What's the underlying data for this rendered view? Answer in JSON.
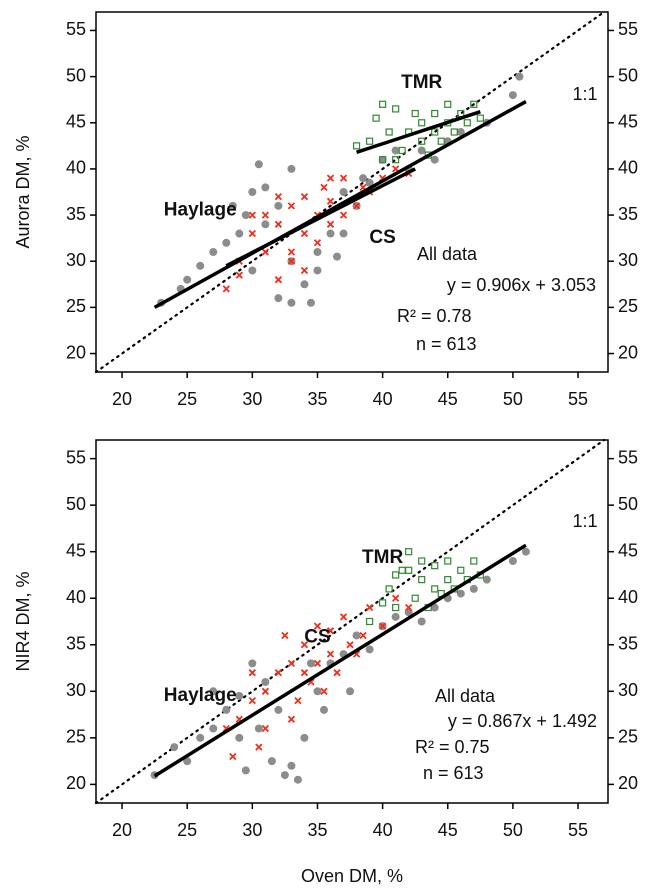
{
  "chart_data": [
    {
      "type": "scatter",
      "ylabel": "Aurora DM, %",
      "xlim": [
        18,
        57.3
      ],
      "ylim": [
        18,
        57
      ],
      "xticks": [
        20,
        25,
        30,
        35,
        40,
        45,
        50,
        55
      ],
      "yticks": [
        20,
        25,
        30,
        35,
        40,
        45,
        50,
        55
      ],
      "identity_label": "1:1",
      "annotations": [
        "All data",
        "y = 0.906x + 3.053",
        "R² = 0.78",
        "n = 613"
      ],
      "series": [
        {
          "name": "Haylage",
          "color": "#8c8c8c",
          "marker": "circle",
          "x": [
            23,
            24.5,
            25,
            26,
            27,
            28,
            28.5,
            29,
            29.5,
            30,
            30.5,
            31,
            31,
            32,
            32,
            33,
            33,
            34,
            34.5,
            35,
            35,
            36,
            36.5,
            37,
            38,
            38.5,
            39,
            40,
            41,
            42,
            43,
            44,
            45,
            46,
            48,
            50,
            50.5,
            37,
            33,
            30
          ],
          "values": [
            25.5,
            27,
            28,
            29.5,
            31,
            32,
            36,
            33,
            35,
            37.5,
            40.5,
            38,
            34,
            26,
            36,
            25.5,
            30,
            27.5,
            25.5,
            31,
            29,
            33,
            30.5,
            37.5,
            36,
            39,
            38.5,
            41,
            42,
            40,
            42,
            41,
            43,
            44,
            45,
            48,
            50,
            33,
            40,
            29
          ]
        },
        {
          "name": "CS",
          "color": "#f22d1c",
          "marker": "x",
          "x": [
            28,
            29,
            30,
            31,
            32,
            32,
            33,
            33,
            34,
            34,
            35,
            35,
            35.5,
            36,
            36,
            37,
            37,
            38,
            38.5,
            39,
            40,
            41,
            42,
            31,
            33,
            34,
            29,
            36,
            30,
            32
          ],
          "values": [
            27,
            30,
            33,
            35,
            34,
            28,
            36,
            31,
            33,
            37,
            35,
            32,
            38,
            34,
            36.5,
            35,
            39,
            36,
            38,
            37.5,
            39,
            40,
            39.5,
            31,
            30,
            29,
            28.5,
            39,
            35,
            37
          ]
        },
        {
          "name": "TMR",
          "color": "#2f8a2f",
          "marker": "square",
          "x": [
            38,
            39,
            39.5,
            40,
            40.5,
            41,
            41,
            41.5,
            42,
            42.5,
            43,
            43,
            43.5,
            44,
            44,
            44.5,
            45,
            45,
            45.5,
            46,
            46.5,
            47,
            47.5,
            40
          ],
          "values": [
            42.5,
            43,
            45.5,
            47,
            44,
            46.5,
            41,
            42,
            44,
            46,
            43,
            45,
            41.5,
            44,
            46,
            43,
            45,
            47,
            44,
            46,
            45,
            47,
            45.5,
            41
          ]
        }
      ],
      "fits": [
        {
          "x": [
            22.5,
            51
          ],
          "values": [
            25,
            47.3
          ]
        },
        {
          "x": [
            28,
            42.5
          ],
          "values": [
            29.5,
            40
          ]
        },
        {
          "x": [
            38,
            47.5
          ],
          "values": [
            41.8,
            46.2
          ]
        }
      ]
    },
    {
      "type": "scatter",
      "xlabel": "Oven DM, %",
      "ylabel": "NIR4 DM, %",
      "xlim": [
        18,
        57.3
      ],
      "ylim": [
        18,
        57
      ],
      "xticks": [
        20,
        25,
        30,
        35,
        40,
        45,
        50,
        55
      ],
      "yticks": [
        20,
        25,
        30,
        35,
        40,
        45,
        50,
        55
      ],
      "identity_label": "1:1",
      "annotations": [
        "All data",
        "y = 0.867x + 1.492",
        "R² = 0.75",
        "n = 613"
      ],
      "series": [
        {
          "name": "Haylage",
          "color": "#8c8c8c",
          "marker": "circle",
          "x": [
            22.5,
            24,
            25,
            26,
            27,
            28,
            29,
            29.5,
            30,
            30.5,
            31,
            31.5,
            32,
            32.5,
            33,
            33.5,
            34,
            34.5,
            35,
            35.5,
            36,
            37,
            37.5,
            38,
            39,
            40,
            41,
            42,
            43,
            44,
            45,
            46,
            47,
            48,
            50,
            51,
            29,
            27
          ],
          "values": [
            21,
            24,
            22.5,
            25,
            26,
            28,
            29.5,
            21.5,
            33,
            26,
            31,
            22.5,
            28,
            21,
            22,
            20.5,
            25,
            33,
            30,
            28,
            33,
            34,
            30,
            36,
            34.5,
            37,
            38,
            38.5,
            37.5,
            39,
            40,
            40.5,
            41,
            42,
            44,
            45,
            25,
            30
          ]
        },
        {
          "name": "CS",
          "color": "#f22d1c",
          "marker": "x",
          "x": [
            28,
            28.5,
            29,
            30,
            30.5,
            31,
            32,
            32.5,
            33,
            33.5,
            34,
            34.5,
            35,
            35,
            35.5,
            36,
            36.5,
            37,
            37.5,
            38,
            38.5,
            39,
            40,
            41,
            42,
            31,
            33,
            36,
            30,
            34
          ],
          "values": [
            26,
            23,
            27,
            29,
            24,
            30,
            32,
            36,
            33,
            29,
            35,
            31,
            33,
            37,
            30,
            34,
            32,
            38,
            35,
            34,
            36,
            39,
            37,
            40,
            39,
            26,
            27,
            36.5,
            32,
            32
          ]
        },
        {
          "name": "TMR",
          "color": "#2f8a2f",
          "marker": "square",
          "x": [
            39,
            40,
            40.5,
            41,
            41.5,
            42,
            42.5,
            43,
            43,
            43.5,
            44,
            44,
            44.5,
            45,
            45,
            45.5,
            46,
            46.5,
            47,
            47.5,
            42,
            41
          ],
          "values": [
            37.5,
            39.5,
            41,
            42.5,
            43,
            45,
            40,
            44,
            42,
            39,
            41,
            43.5,
            40.5,
            42,
            44,
            41,
            43,
            42,
            44,
            42.5,
            43,
            39
          ]
        }
      ],
      "fits": [
        {
          "x": [
            22.5,
            51
          ],
          "values": [
            20.9,
            45.7
          ]
        }
      ]
    }
  ]
}
